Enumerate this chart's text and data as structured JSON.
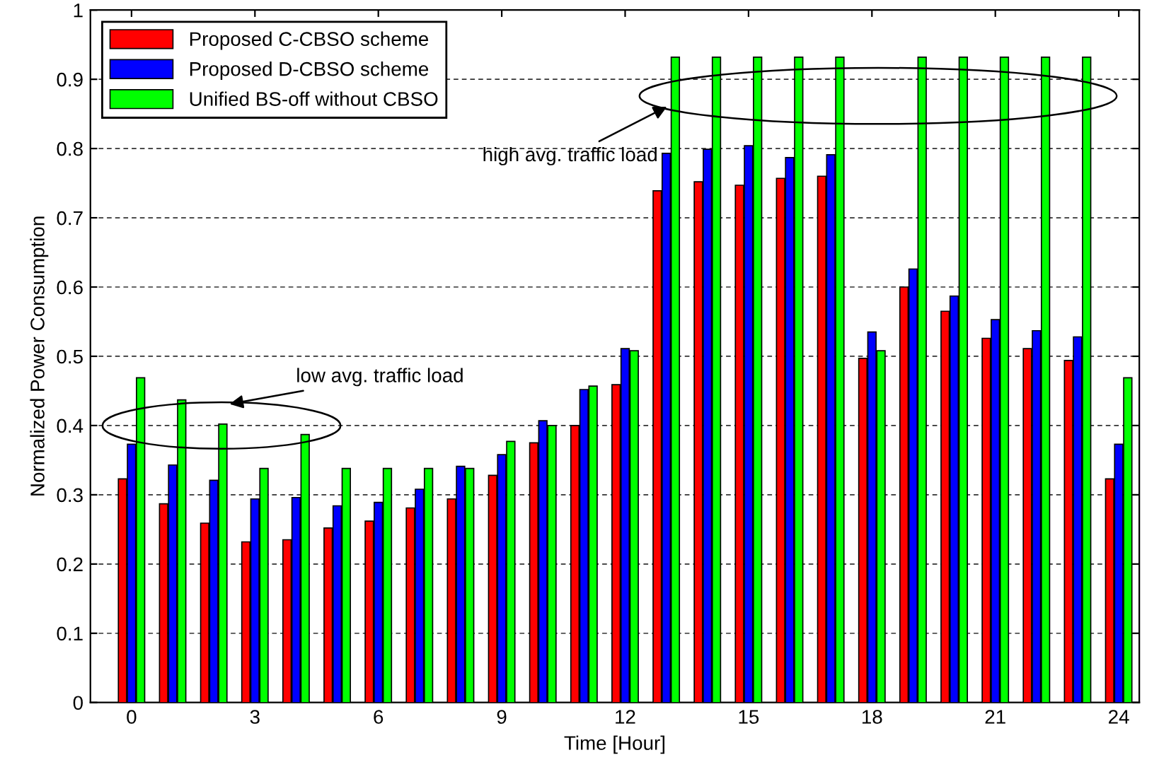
{
  "chart_data": {
    "type": "bar",
    "xlabel": "Time [Hour]",
    "ylabel": "Normalized Power Consumption",
    "x": [
      0,
      1,
      2,
      3,
      4,
      5,
      6,
      7,
      8,
      9,
      10,
      11,
      12,
      13,
      14,
      15,
      16,
      17,
      18,
      19,
      20,
      21,
      22,
      23,
      24
    ],
    "series": [
      {
        "name": "Proposed C-CBSO scheme",
        "color": "#ff0000",
        "values": [
          0.323,
          0.287,
          0.259,
          0.232,
          0.235,
          0.252,
          0.262,
          0.281,
          0.294,
          0.328,
          0.375,
          0.4,
          0.459,
          0.739,
          0.752,
          0.747,
          0.757,
          0.76,
          0.497,
          0.6,
          0.565,
          0.526,
          0.511,
          0.494,
          0.323
        ]
      },
      {
        "name": "Proposed D-CBSO scheme",
        "color": "#0000ff",
        "values": [
          0.373,
          0.343,
          0.321,
          0.294,
          0.296,
          0.284,
          0.289,
          0.308,
          0.341,
          0.358,
          0.407,
          0.452,
          0.511,
          0.793,
          0.799,
          0.804,
          0.787,
          0.791,
          0.535,
          0.626,
          0.587,
          0.553,
          0.537,
          0.528,
          0.373
        ]
      },
      {
        "name": "Unified BS-off without CBSO",
        "color": "#00ff00",
        "values": [
          0.469,
          0.437,
          0.402,
          0.338,
          0.387,
          0.338,
          0.338,
          0.338,
          0.338,
          0.377,
          0.4,
          0.457,
          0.508,
          0.932,
          0.932,
          0.932,
          0.932,
          0.932,
          0.508,
          0.932,
          0.932,
          0.932,
          0.932,
          0.932,
          0.469
        ]
      }
    ],
    "xlim": [
      -1,
      24.5
    ],
    "xticks": [
      0,
      3,
      6,
      9,
      12,
      15,
      18,
      21,
      24
    ],
    "ylim": [
      0,
      1
    ],
    "yticks": [
      0,
      0.1,
      0.2,
      0.3,
      0.4,
      0.5,
      0.6,
      0.7,
      0.8,
      0.9,
      1
    ],
    "grid": "y",
    "legend": "top left",
    "annotations": [
      "low avg. traffic load",
      "high avg. traffic load"
    ]
  }
}
